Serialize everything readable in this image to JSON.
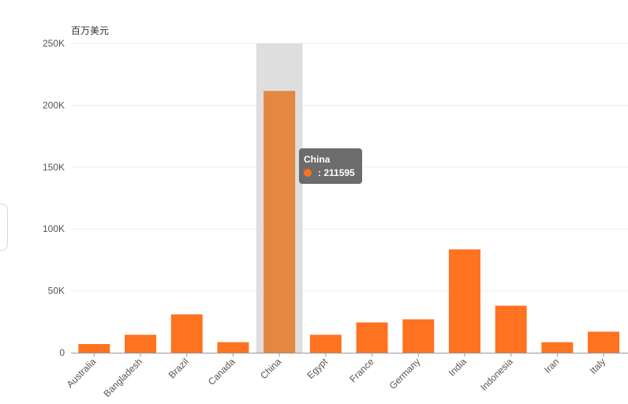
{
  "colors": {
    "bar": "#ff7220",
    "bar_highlight": "#e38743",
    "hover_band": "#dedede",
    "grid": "#eeeeee",
    "axis_line": "#999999"
  },
  "tooltip": {
    "category": "China",
    "value_text": ": 211595"
  },
  "chart_data": {
    "type": "bar",
    "ylabel": "百万美元",
    "xlabel": "",
    "title": "",
    "ylim": [
      0,
      250000
    ],
    "yticks": [
      0,
      50000,
      100000,
      150000,
      200000,
      250000
    ],
    "ytick_labels": [
      "0",
      "50K",
      "100K",
      "150K",
      "200K",
      "250K"
    ],
    "grid": true,
    "highlighted_category": "China",
    "categories": [
      "Australia",
      "Bangladesh",
      "Brazil",
      "Canada",
      "China",
      "Egypt",
      "France",
      "Germany",
      "India",
      "Indonesia",
      "Iran",
      "Italy"
    ],
    "values": [
      7000,
      14500,
      31000,
      8500,
      211595,
      14500,
      24500,
      27000,
      83500,
      38000,
      8500,
      17000
    ]
  }
}
